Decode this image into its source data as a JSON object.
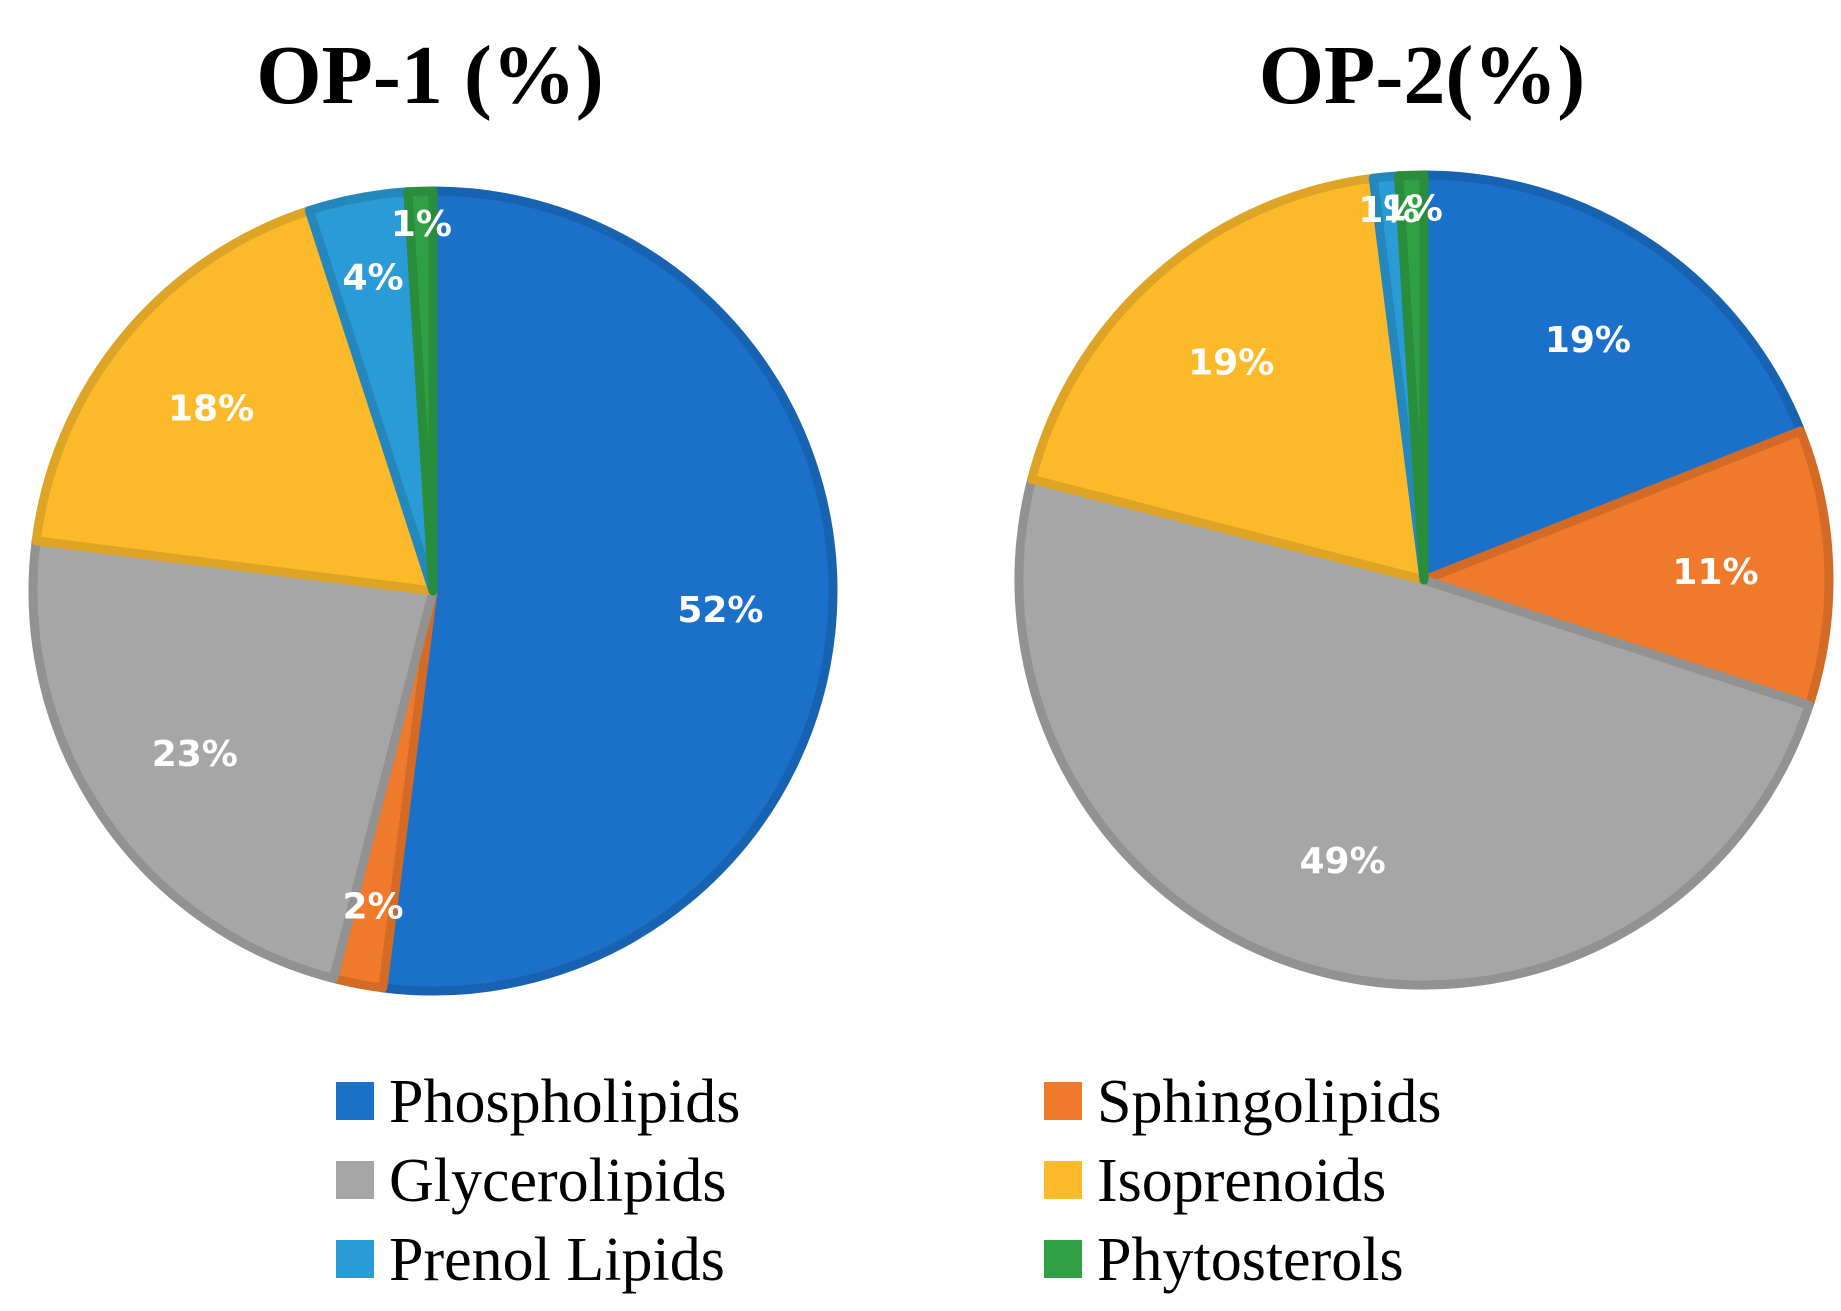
{
  "chart_data": [
    {
      "type": "pie",
      "title": "OP-1 (%)",
      "start": "12 o'clock",
      "direction": "clockwise",
      "slices": [
        {
          "name": "Phospholipids",
          "value": 52,
          "label": "52%",
          "color": "#1B70C9"
        },
        {
          "name": "Sphingolipids",
          "value": 2,
          "label": "2%",
          "color": "#F07A2B"
        },
        {
          "name": "Glycerolipids",
          "value": 23,
          "label": "23%",
          "color": "#A6A6A6"
        },
        {
          "name": "Isoprenoids",
          "value": 18,
          "label": "18%",
          "color": "#FCBA2B"
        },
        {
          "name": "Prenol Lipids",
          "value": 4,
          "label": "4%",
          "color": "#2A9BD6"
        },
        {
          "name": "Phytosterols",
          "value": 1,
          "label": "1%",
          "color": "#2FA043"
        }
      ]
    },
    {
      "type": "pie",
      "title": "OP-2(%)",
      "start": "12 o'clock",
      "direction": "clockwise",
      "slices": [
        {
          "name": "Phospholipids",
          "value": 19,
          "label": "19%",
          "color": "#1B70C9"
        },
        {
          "name": "Sphingolipids",
          "value": 11,
          "label": "11%",
          "color": "#F07A2B"
        },
        {
          "name": "Glycerolipids",
          "value": 49,
          "label": "49%",
          "color": "#A6A6A6"
        },
        {
          "name": "Isoprenoids",
          "value": 19,
          "label": "19%",
          "color": "#FCBA2B"
        },
        {
          "name": "Prenol Lipids",
          "value": 1,
          "label": "1%",
          "color": "#2A9BD6"
        },
        {
          "name": "Phytosterols",
          "value": 1,
          "label": "1%",
          "color": "#2FA043"
        }
      ]
    }
  ],
  "legend": {
    "items": [
      {
        "label": "Phospholipids",
        "color": "#1B70C9"
      },
      {
        "label": "Sphingolipids",
        "color": "#F07A2B"
      },
      {
        "label": "Glycerolipids",
        "color": "#A6A6A6"
      },
      {
        "label": "Isoprenoids",
        "color": "#FCBA2B"
      },
      {
        "label": "Prenol Lipids",
        "color": "#2A9BD6"
      },
      {
        "label": "Phytosterols",
        "color": "#2FA043"
      }
    ]
  }
}
